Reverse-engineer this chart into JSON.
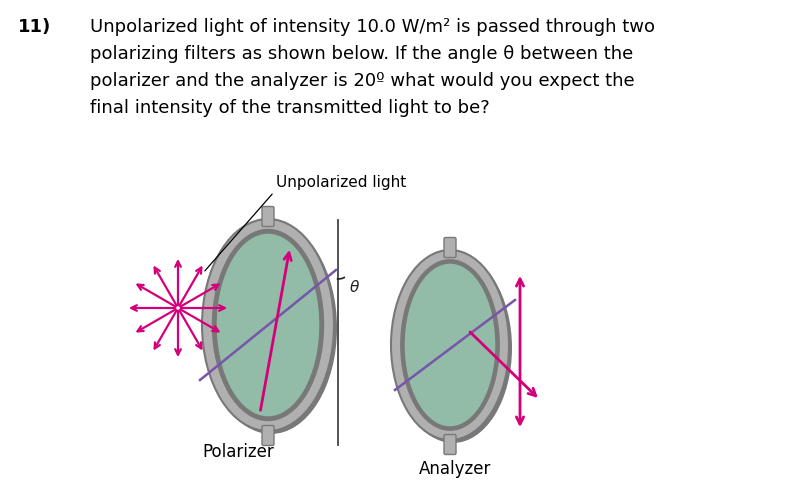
{
  "background_color": "#ffffff",
  "title_number": "11)",
  "question_text_line1": "Unpolarized light of intensity 10.0 W/m² is passed through two",
  "question_text_line2": "polarizing filters as shown below. If the angle θ between the",
  "question_text_line3": "polarizer and the analyzer is 20º what would you expect the",
  "question_text_line4": "final intensity of the transmitted light to be?",
  "label_unpolarized": "Unpolarized light",
  "label_polarizer": "Polarizer",
  "label_analyzer": "Analyzer",
  "label_theta": "θ",
  "filter_face_color": "#92bba8",
  "filter_rim_color_light": "#b0b0b0",
  "filter_rim_color_dark": "#787878",
  "arrow_color": "#d4007a",
  "purple_line_color": "#7755aa",
  "font_size_question": 13.0,
  "font_size_number": 13.0,
  "font_size_label": 11,
  "font_size_theta": 11
}
